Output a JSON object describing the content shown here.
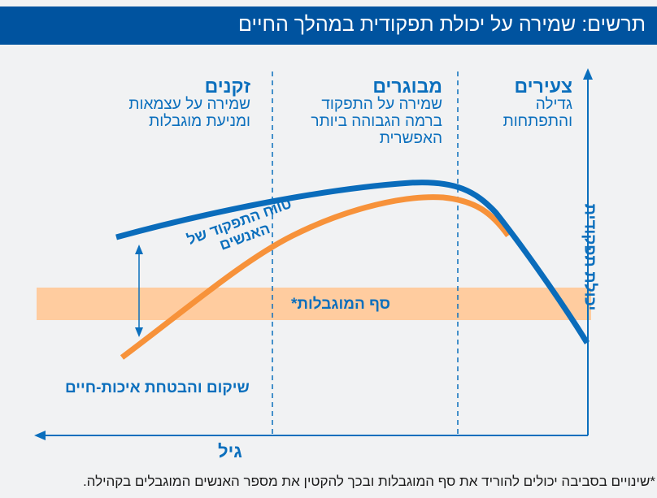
{
  "title": "תרשים: שמירה על יכולת תפקודית במהלך החיים",
  "stages": [
    {
      "heading": "צעירים",
      "lines": [
        "גדילה",
        "והתפתחות"
      ]
    },
    {
      "heading": "מבוגרים",
      "lines": [
        "שמירה על התפקוד",
        "ברמה הגבוהה ביותר",
        "האפשרית"
      ]
    },
    {
      "heading": "זקנים",
      "lines": [
        "שמירה על עצמאות",
        "ומניעת מוגבלות"
      ]
    }
  ],
  "y_axis_label": "יכולת תפקודית",
  "x_axis_label": "גיל",
  "range_label": [
    "טווח התפקוד של",
    "האנשים"
  ],
  "threshold_label": "סף המוגבלות*",
  "rehab_label": "שיקום והבטחת איכות-חיים",
  "footnote": "*שינויים בסביבה יכולים להוריד את סף המוגבלות ובכך להקטין את מספר האנשים המוגבלים בקהילה.",
  "colors": {
    "brand": "#00539f",
    "line_blue": "#0a6cbb",
    "line_orange": "#f7923a",
    "band": "#ffcc9f"
  }
}
